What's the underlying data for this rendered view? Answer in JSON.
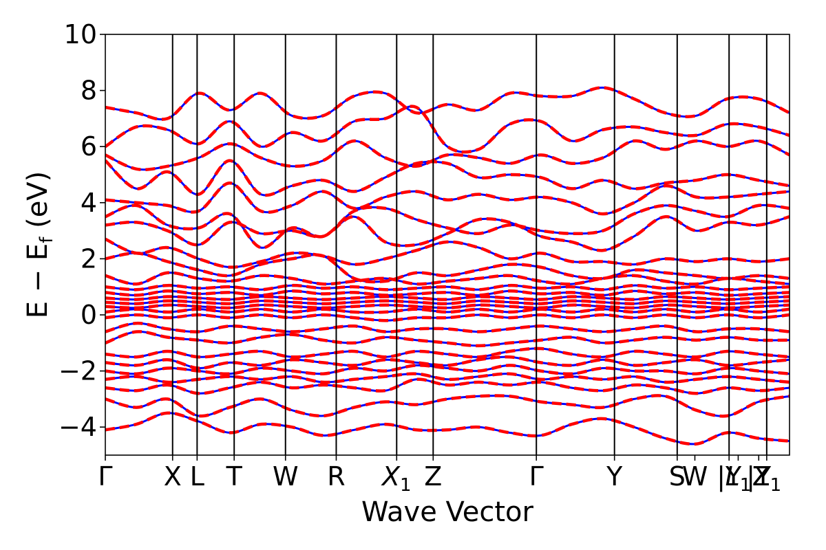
{
  "chart_data": {
    "type": "line",
    "title": "",
    "xlabel": "Wave Vector",
    "ylabel": "E − E",
    "ylabel_sub": "f",
    "ylabel_unit": " (eV)",
    "ylim": [
      -5,
      10
    ],
    "yticks": [
      -4,
      -2,
      0,
      2,
      4,
      6,
      8,
      10
    ],
    "ytick_labels": [
      "−4",
      "−2",
      "0",
      "2",
      "4",
      "6",
      "8",
      "10"
    ],
    "x_range": [
      0,
      12.0
    ],
    "kpoints": [
      {
        "label": "Γ",
        "x": 0
      },
      {
        "label": "X",
        "x": 1.18
      },
      {
        "label": "L",
        "x": 1.61
      },
      {
        "label": "T",
        "x": 2.26
      },
      {
        "label": "W",
        "x": 3.16
      },
      {
        "label": "R",
        "x": 4.05
      },
      {
        "label": "X",
        "sub": "1",
        "italic": true,
        "x": 5.11
      },
      {
        "label": "Z",
        "x": 5.75
      },
      {
        "label": "Γ",
        "x": 7.56
      },
      {
        "label": "Y",
        "x": 8.93
      },
      {
        "label": "S",
        "x": 10.03
      },
      {
        "label": "W",
        "x": 10.34
      },
      {
        "label": "|Y",
        "x": 10.94
      },
      {
        "label": "L",
        "sub": "1",
        "italic": true,
        "x": 11.1
      },
      {
        "label": "|Y",
        "x": 11.46
      },
      {
        "label": "Z",
        "sub": "1",
        "x": 11.6
      }
    ],
    "vlines": [
      1.18,
      1.61,
      2.26,
      3.16,
      4.05,
      5.11,
      5.75,
      7.56,
      8.93,
      10.03,
      10.94,
      11.6
    ],
    "series": [
      {
        "color": "#0000ff",
        "style": "solid"
      },
      {
        "color": "#ff0000",
        "style": "dashed"
      }
    ],
    "bands": [
      [
        -4.1,
        -3.9,
        -3.5,
        -3.8,
        -4.2,
        -3.9,
        -4.0,
        -4.3,
        -4.1,
        -3.9,
        -4.1,
        -4.1,
        -4.0,
        -4.2,
        -4.3,
        -3.9,
        -3.7,
        -4.0,
        -4.4,
        -4.6,
        -4.2,
        -4.4,
        -4.5
      ],
      [
        -3.0,
        -3.3,
        -3.0,
        -3.6,
        -3.3,
        -3.0,
        -3.4,
        -3.6,
        -3.3,
        -3.1,
        -3.2,
        -3.0,
        -2.9,
        -2.9,
        -3.1,
        -3.2,
        -3.3,
        -3.0,
        -2.9,
        -3.4,
        -3.6,
        -3.1,
        -2.9
      ],
      [
        -2.6,
        -2.7,
        -2.5,
        -2.8,
        -2.6,
        -2.4,
        -2.6,
        -2.5,
        -2.6,
        -2.7,
        -2.3,
        -2.5,
        -2.4,
        -2.5,
        -2.4,
        -2.6,
        -2.7,
        -2.5,
        -2.6,
        -2.8,
        -2.6,
        -2.7,
        -2.6
      ],
      [
        -2.3,
        -2.2,
        -2.4,
        -2.3,
        -2.2,
        -2.3,
        -2.2,
        -2.4,
        -2.3,
        -2.2,
        -2.1,
        -2.3,
        -2.2,
        -2.1,
        -2.3,
        -2.2,
        -2.3,
        -2.2,
        -2.4,
        -2.3,
        -2.2,
        -2.3,
        -2.4
      ],
      [
        -2.0,
        -2.1,
        -1.9,
        -2.0,
        -2.1,
        -1.9,
        -2.0,
        -2.1,
        -1.9,
        -2.0,
        -1.8,
        -1.9,
        -2.0,
        -1.8,
        -2.0,
        -2.1,
        -1.9,
        -2.0,
        -2.0,
        -2.1,
        -1.9,
        -2.0,
        -2.1
      ],
      [
        -1.7,
        -1.8,
        -1.6,
        -1.9,
        -1.7,
        -1.8,
        -1.6,
        -1.7,
        -1.8,
        -1.6,
        -1.7,
        -1.8,
        -1.6,
        -1.5,
        -1.7,
        -1.8,
        -1.6,
        -1.8,
        -1.7,
        -1.6,
        -1.8,
        -1.7,
        -1.6
      ],
      [
        -1.4,
        -1.5,
        -1.3,
        -1.5,
        -1.4,
        -1.3,
        -1.5,
        -1.4,
        -1.3,
        -1.5,
        -1.3,
        -1.4,
        -1.5,
        -1.3,
        -1.2,
        -1.4,
        -1.5,
        -1.3,
        -1.4,
        -1.5,
        -1.3,
        -1.4,
        -1.5
      ],
      [
        -1.0,
        -0.6,
        -0.8,
        -0.9,
        -1.0,
        -0.8,
        -0.7,
        -0.9,
        -1.0,
        -0.8,
        -0.9,
        -1.0,
        -1.1,
        -1.0,
        -0.9,
        -0.8,
        -1.0,
        -0.9,
        -0.8,
        -0.9,
        -0.8,
        -0.9,
        -0.9
      ],
      [
        -0.6,
        -0.3,
        -0.5,
        -0.6,
        -0.4,
        -0.5,
        -0.6,
        -0.5,
        -0.4,
        -0.6,
        -0.5,
        -0.5,
        -0.6,
        -0.5,
        -0.4,
        -0.5,
        -0.6,
        -0.5,
        -0.4,
        -0.6,
        -0.5,
        -0.5,
        -0.6
      ],
      [
        -0.1,
        0.0,
        -0.1,
        0.0,
        -0.1,
        0.0,
        -0.1,
        0.0,
        -0.1,
        -0.2,
        -0.1,
        -0.1,
        0.0,
        -0.1,
        0.0,
        -0.1,
        0.0,
        -0.1,
        0.0,
        -0.1,
        0.0,
        -0.1,
        0.0
      ],
      [
        0.1,
        0.2,
        0.1,
        0.2,
        0.1,
        0.2,
        0.1,
        0.2,
        0.1,
        0.1,
        0.2,
        0.1,
        0.2,
        0.1,
        0.2,
        0.1,
        0.2,
        0.1,
        0.2,
        0.1,
        0.2,
        0.1,
        0.2
      ],
      [
        0.3,
        0.25,
        0.35,
        0.3,
        0.25,
        0.35,
        0.3,
        0.25,
        0.3,
        0.35,
        0.3,
        0.25,
        0.35,
        0.3,
        0.25,
        0.35,
        0.3,
        0.25,
        0.35,
        0.3,
        0.25,
        0.3,
        0.35
      ],
      [
        0.45,
        0.4,
        0.5,
        0.45,
        0.4,
        0.5,
        0.45,
        0.4,
        0.45,
        0.5,
        0.45,
        0.4,
        0.5,
        0.45,
        0.4,
        0.5,
        0.45,
        0.4,
        0.5,
        0.45,
        0.4,
        0.45,
        0.5
      ],
      [
        0.6,
        0.55,
        0.65,
        0.6,
        0.55,
        0.65,
        0.6,
        0.55,
        0.6,
        0.65,
        0.6,
        0.55,
        0.65,
        0.6,
        0.55,
        0.65,
        0.6,
        0.55,
        0.65,
        0.6,
        0.55,
        0.6,
        0.65
      ],
      [
        0.8,
        0.7,
        0.85,
        0.75,
        0.8,
        0.7,
        0.85,
        0.75,
        0.8,
        0.7,
        0.75,
        0.8,
        0.7,
        0.85,
        0.75,
        0.8,
        0.7,
        0.85,
        0.75,
        0.8,
        0.7,
        0.75,
        0.8
      ],
      [
        1.0,
        0.9,
        1.05,
        0.95,
        1.0,
        0.9,
        1.05,
        0.95,
        1.0,
        0.9,
        0.95,
        1.0,
        0.9,
        1.05,
        0.95,
        1.0,
        0.9,
        1.05,
        0.95,
        1.0,
        0.9,
        0.95,
        1.0
      ],
      [
        1.4,
        1.1,
        1.5,
        1.3,
        1.2,
        1.4,
        1.3,
        1.1,
        1.2,
        1.3,
        1.1,
        1.2,
        1.3,
        1.4,
        1.2,
        1.1,
        1.3,
        1.4,
        1.2,
        1.1,
        1.3,
        1.2,
        1.1
      ],
      [
        2.0,
        2.2,
        1.9,
        1.6,
        1.4,
        1.8,
        2.0,
        2.1,
        1.3,
        1.2,
        1.5,
        1.4,
        1.6,
        1.8,
        1.7,
        1.4,
        1.3,
        1.6,
        1.5,
        1.4,
        1.3,
        1.4,
        1.3
      ],
      [
        2.7,
        2.2,
        2.4,
        2.0,
        1.7,
        1.9,
        2.2,
        2.1,
        1.8,
        2.0,
        2.3,
        2.6,
        2.4,
        2.0,
        2.2,
        1.9,
        1.9,
        1.8,
        2.0,
        1.9,
        2.0,
        1.9,
        2.0
      ],
      [
        3.2,
        3.3,
        3.0,
        2.5,
        3.3,
        2.9,
        3.0,
        2.8,
        3.5,
        2.6,
        2.5,
        2.9,
        3.4,
        3.3,
        2.8,
        2.6,
        2.3,
        2.8,
        3.5,
        3.0,
        3.3,
        3.2,
        3.5
      ],
      [
        3.5,
        3.9,
        3.2,
        3.1,
        3.6,
        2.4,
        3.1,
        2.8,
        3.7,
        3.8,
        3.4,
        3.1,
        2.9,
        3.2,
        3.0,
        2.9,
        3.0,
        3.6,
        3.9,
        3.7,
        3.5,
        3.9,
        3.8
      ],
      [
        4.1,
        4.0,
        3.9,
        3.7,
        4.7,
        3.7,
        3.9,
        4.4,
        3.8,
        4.2,
        4.4,
        4.1,
        4.3,
        4.1,
        4.2,
        4.0,
        3.6,
        4.0,
        4.6,
        4.2,
        4.2,
        4.3,
        4.4
      ],
      [
        5.5,
        4.5,
        5.1,
        4.3,
        5.5,
        4.3,
        4.6,
        4.8,
        4.4,
        4.9,
        5.4,
        5.4,
        4.9,
        5.0,
        4.9,
        4.5,
        4.8,
        4.5,
        4.7,
        4.8,
        5.0,
        4.8,
        4.6
      ],
      [
        5.7,
        5.2,
        5.3,
        5.6,
        6.1,
        5.6,
        5.3,
        5.5,
        6.2,
        5.6,
        5.3,
        5.7,
        5.6,
        5.4,
        5.7,
        5.4,
        5.6,
        6.2,
        5.9,
        6.2,
        6.0,
        6.2,
        5.7
      ],
      [
        6.0,
        6.7,
        6.6,
        6.1,
        6.9,
        6.0,
        6.5,
        6.2,
        6.9,
        7.0,
        7.4,
        6.0,
        5.9,
        6.8,
        6.9,
        6.2,
        6.6,
        6.7,
        6.5,
        6.4,
        6.8,
        6.7,
        6.4
      ],
      [
        7.4,
        7.2,
        7.0,
        7.9,
        7.3,
        7.9,
        7.1,
        7.1,
        7.8,
        7.9,
        7.2,
        7.5,
        7.3,
        7.9,
        7.8,
        7.8,
        8.1,
        7.7,
        7.2,
        7.1,
        7.7,
        7.7,
        7.2
      ]
    ]
  }
}
